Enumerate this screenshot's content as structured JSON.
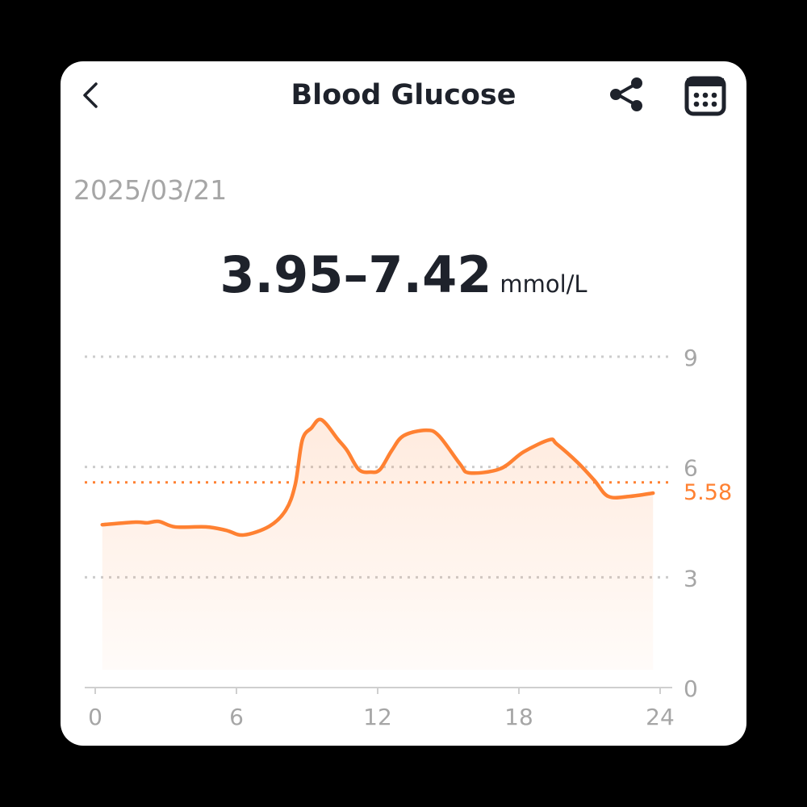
{
  "header": {
    "title": "Blood Glucose",
    "back_icon": "chevron-left-icon",
    "share_icon": "share-icon",
    "calendar_icon": "calendar-icon"
  },
  "date": "2025/03/21",
  "summary": {
    "range": "3.95–7.42",
    "unit": "mmol/L"
  },
  "colors": {
    "line": "#ff8132",
    "grid": "#cccccc",
    "text": "#1e222b",
    "muted": "#a6a6a6"
  },
  "chart_data": {
    "type": "area",
    "xlim": [
      0,
      24
    ],
    "ylim": [
      0,
      9
    ],
    "x_ticks": [
      "0",
      "6",
      "12",
      "18",
      "24"
    ],
    "y_ticks": [
      "0",
      "3",
      "6",
      "9"
    ],
    "reference_line": {
      "value": 5.58,
      "label": "5.58"
    },
    "x": [
      0.3,
      1.7,
      2.2,
      2.7,
      3.4,
      4.7,
      5.55,
      6.3,
      7.4,
      8.1,
      8.5,
      8.8,
      9.2,
      9.5,
      9.8,
      10.3,
      10.7,
      11.2,
      11.7,
      12.1,
      12.6,
      13.1,
      14.05,
      14.6,
      15.5,
      15.9,
      17.2,
      18.2,
      19.3,
      19.6,
      20.5,
      21.2,
      21.8,
      22.7,
      23.7
    ],
    "y": [
      4.43,
      4.5,
      4.48,
      4.52,
      4.37,
      4.37,
      4.28,
      4.15,
      4.39,
      4.83,
      5.53,
      6.74,
      7.07,
      7.29,
      7.18,
      6.76,
      6.45,
      5.93,
      5.86,
      5.93,
      6.45,
      6.85,
      7.0,
      6.85,
      6.08,
      5.84,
      5.95,
      6.41,
      6.74,
      6.63,
      6.12,
      5.64,
      5.2,
      5.2,
      5.29
    ]
  }
}
